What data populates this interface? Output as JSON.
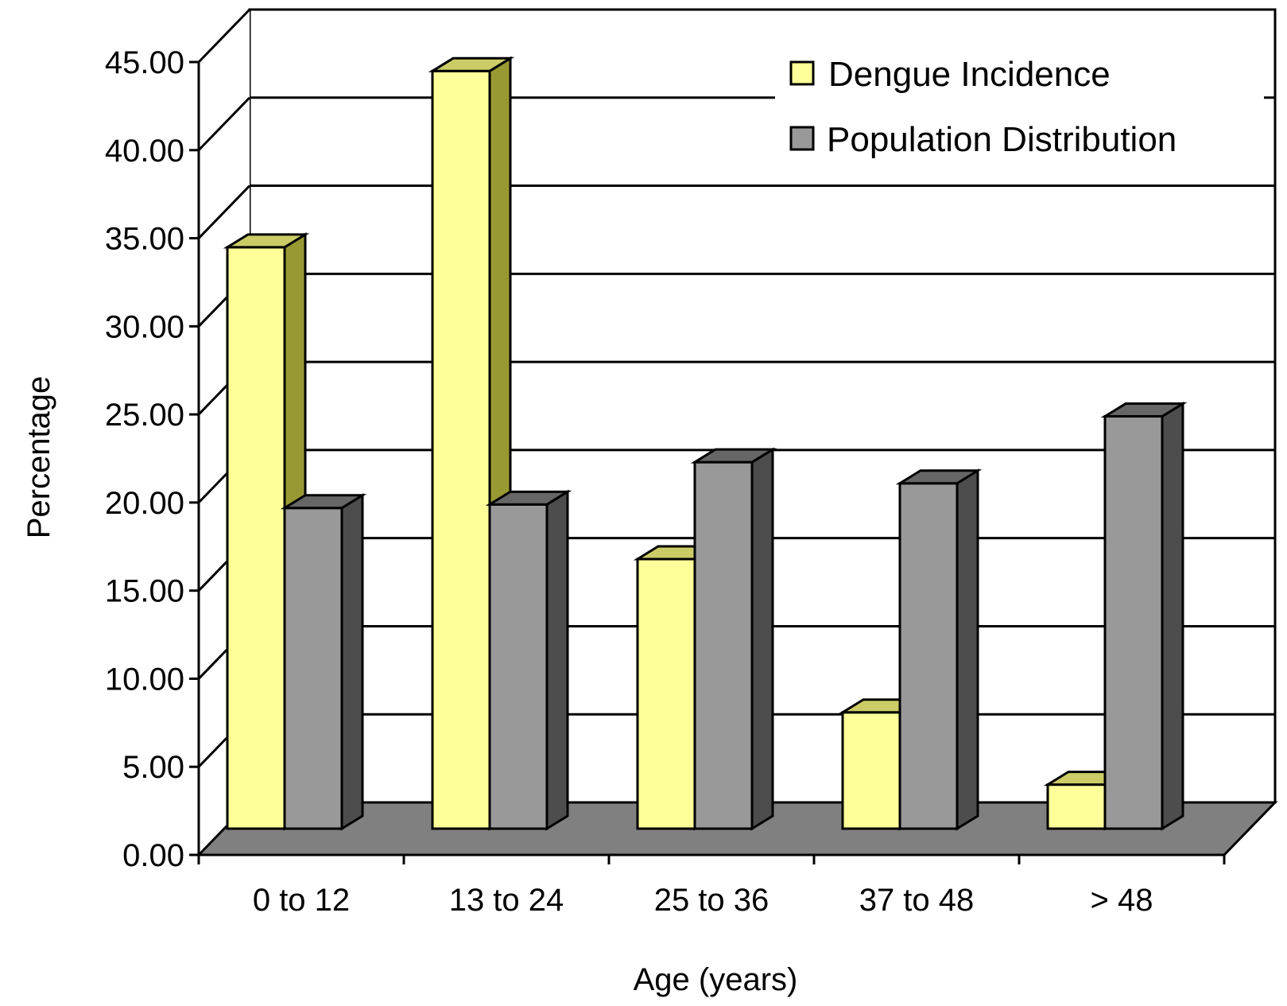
{
  "chart_data": {
    "type": "bar",
    "style": "3d-clustered-column",
    "categories": [
      "0 to 12",
      "13 to 24",
      "25 to 36",
      "37 to 48",
      "> 48"
    ],
    "series": [
      {
        "name": "Dengue Incidence",
        "values": [
          33.0,
          43.0,
          15.3,
          6.6,
          2.5
        ],
        "color": "#ffff99",
        "side_color": "#999933"
      },
      {
        "name": "Population Distribution",
        "values": [
          18.2,
          18.4,
          20.8,
          19.6,
          23.4
        ],
        "color": "#999999",
        "side_color": "#4d4d4d"
      }
    ],
    "y_ticks": [
      "0.00",
      "5.00",
      "10.00",
      "15.00",
      "20.00",
      "25.00",
      "30.00",
      "35.00",
      "40.00",
      "45.00"
    ],
    "ylim": [
      0,
      45
    ],
    "xlabel": "Age (years)",
    "ylabel": "Percentage",
    "grid": true,
    "legend_position": "top-right",
    "floor_color": "#808080",
    "wall_color": "#ffffff"
  }
}
